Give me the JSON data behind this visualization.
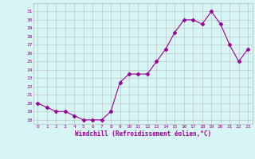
{
  "x": [
    0,
    1,
    2,
    3,
    4,
    5,
    6,
    7,
    8,
    9,
    10,
    11,
    12,
    13,
    14,
    15,
    16,
    17,
    18,
    19,
    20,
    21,
    22,
    23
  ],
  "y": [
    20,
    19.5,
    19,
    19,
    18.5,
    18,
    18,
    18,
    19,
    22.5,
    23.5,
    23.5,
    23.5,
    25,
    26.5,
    28.5,
    30,
    30,
    29.5,
    31,
    29.5,
    27,
    25,
    26.5
  ],
  "line_color": "#990099",
  "marker": "D",
  "marker_size": 2.5,
  "bg_color": "#d8f5f5",
  "grid_color": "#bbbbbb",
  "xlabel": "Windchill (Refroidissement éolien,°C)",
  "xlabel_color": "#990099",
  "tick_color": "#990099",
  "yticks": [
    18,
    19,
    20,
    21,
    22,
    23,
    24,
    25,
    26,
    27,
    28,
    29,
    30,
    31
  ],
  "xticks": [
    0,
    1,
    2,
    3,
    4,
    5,
    6,
    7,
    8,
    9,
    10,
    11,
    12,
    13,
    14,
    15,
    16,
    17,
    18,
    19,
    20,
    21,
    22,
    23
  ],
  "ylim": [
    17.5,
    32
  ],
  "xlim": [
    -0.5,
    23.5
  ]
}
